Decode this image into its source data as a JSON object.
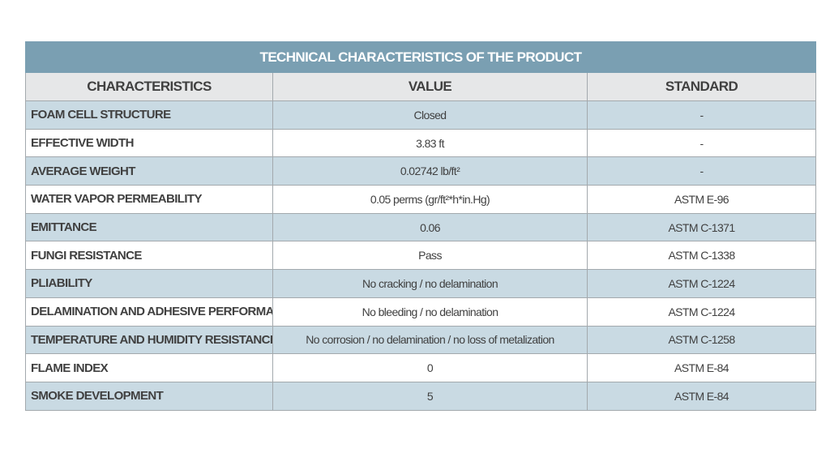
{
  "title": "TECHNICAL CHARACTERISTICS OF THE PRODUCT",
  "columns": [
    "CHARACTERISTICS",
    "VALUE",
    "STANDARD"
  ],
  "rows": [
    [
      "FOAM CELL STRUCTURE",
      "Closed",
      "-"
    ],
    [
      "EFFECTIVE WIDTH",
      "3.83 ft",
      "-"
    ],
    [
      "AVERAGE WEIGHT",
      "0.02742 lb/ft²",
      "-"
    ],
    [
      "WATER VAPOR PERMEABILITY",
      "0.05 perms (gr/ft²*h*in.Hg)",
      "ASTM E-96"
    ],
    [
      "EMITTANCE",
      "0.06",
      "ASTM C-1371"
    ],
    [
      "FUNGI RESISTANCE",
      "Pass",
      "ASTM C-1338"
    ],
    [
      "PLIABILITY",
      "No cracking / no delamination",
      "ASTM C-1224"
    ],
    [
      "DELAMINATION AND ADHESIVE PERFORMANCE",
      "No bleeding / no delamination",
      "ASTM C-1224"
    ],
    [
      "TEMPERATURE AND HUMIDITY RESISTANCE",
      "No corrosion / no delamination / no loss of metalization",
      "ASTM C-1258"
    ],
    [
      "FLAME INDEX",
      "0",
      "ASTM E-84"
    ],
    [
      "SMOKE DEVELOPMENT",
      "5",
      "ASTM E-84"
    ]
  ],
  "colors": {
    "title_bg": "#7a9fb2",
    "header_bg": "#e6e7e8",
    "stripe": "#c9dae3"
  }
}
